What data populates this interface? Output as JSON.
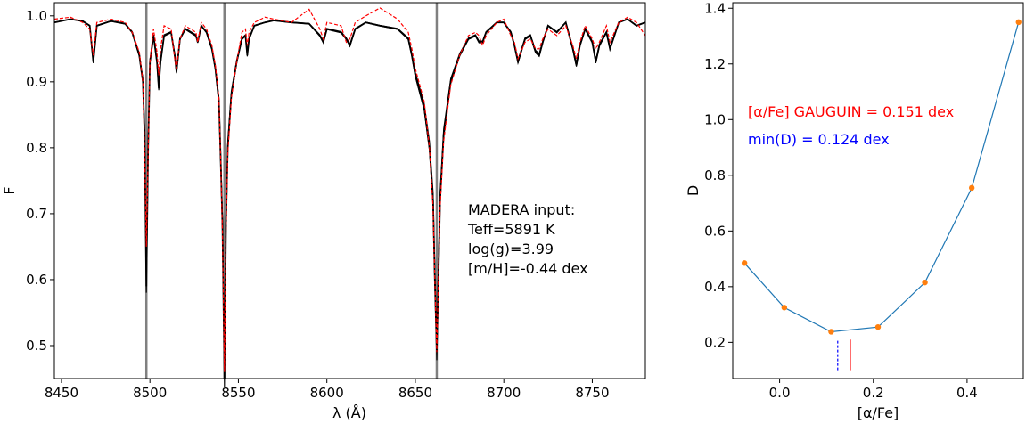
{
  "chart_data": [
    {
      "type": "line",
      "title": "",
      "xlabel": "λ (Å)",
      "ylabel": "F",
      "xlim": [
        8446,
        8780
      ],
      "ylim": [
        0.45,
        1.02
      ],
      "xticks": [
        8450,
        8500,
        8550,
        8600,
        8650,
        8700,
        8750
      ],
      "yticks": [
        0.5,
        0.6,
        0.7,
        0.8,
        0.9,
        1.0
      ],
      "grid": false,
      "vertical_markers": [
        8498.0,
        8542.1,
        8662.1
      ],
      "annotation": [
        "MADERA input:",
        "Teff=5891 K",
        "log(g)=3.99",
        "[m/H]=-0.44 dex"
      ],
      "series": [
        {
          "style": "solid black, multiple overlaid model spectra",
          "color": "#000000",
          "x": [
            8446,
            8455,
            8462,
            8466,
            8468,
            8470,
            8478,
            8486,
            8490,
            8494,
            8496,
            8497,
            8498,
            8499,
            8500,
            8502,
            8504,
            8505,
            8506,
            8508,
            8512,
            8514,
            8515,
            8517,
            8520,
            8526,
            8527,
            8529,
            8532,
            8535,
            8537,
            8539,
            8540,
            8541,
            8542.1,
            8543,
            8544,
            8546,
            8549,
            8552,
            8554,
            8555,
            8556,
            8559,
            8565,
            8570,
            8580,
            8590,
            8596,
            8598,
            8600,
            8608,
            8611,
            8613,
            8616,
            8622,
            8630,
            8640,
            8646,
            8648,
            8650,
            8655,
            8658,
            8660,
            8661,
            8662.1,
            8663,
            8664,
            8666,
            8670,
            8675,
            8680,
            8684,
            8686,
            8688,
            8690,
            8696,
            8700,
            8704,
            8706,
            8708,
            8712,
            8715,
            8718,
            8720,
            8722,
            8725,
            8730,
            8735,
            8739,
            8741,
            8743,
            8746,
            8750,
            8752,
            8754,
            8758,
            8760,
            8765,
            8770,
            8775,
            8780
          ],
          "y": [
            0.99,
            0.995,
            0.992,
            0.985,
            0.93,
            0.985,
            0.992,
            0.988,
            0.975,
            0.94,
            0.9,
            0.82,
            0.59,
            0.8,
            0.93,
            0.97,
            0.93,
            0.89,
            0.93,
            0.97,
            0.975,
            0.94,
            0.915,
            0.965,
            0.98,
            0.97,
            0.96,
            0.985,
            0.975,
            0.95,
            0.92,
            0.87,
            0.78,
            0.68,
            0.45,
            0.68,
            0.8,
            0.88,
            0.93,
            0.965,
            0.97,
            0.94,
            0.965,
            0.985,
            0.99,
            0.993,
            0.99,
            0.988,
            0.97,
            0.96,
            0.98,
            0.975,
            0.965,
            0.955,
            0.98,
            0.99,
            0.985,
            0.98,
            0.965,
            0.94,
            0.91,
            0.86,
            0.8,
            0.72,
            0.6,
            0.49,
            0.6,
            0.72,
            0.82,
            0.9,
            0.94,
            0.965,
            0.97,
            0.96,
            0.96,
            0.975,
            0.99,
            0.99,
            0.975,
            0.955,
            0.93,
            0.965,
            0.97,
            0.945,
            0.94,
            0.96,
            0.985,
            0.975,
            0.99,
            0.95,
            0.925,
            0.955,
            0.98,
            0.96,
            0.93,
            0.955,
            0.975,
            0.95,
            0.99,
            0.995,
            0.985,
            0.99
          ]
        },
        {
          "style": "dashed red, observed spectrum",
          "color": "#ff0000",
          "x": [
            8446,
            8455,
            8462,
            8466,
            8468,
            8470,
            8478,
            8486,
            8490,
            8494,
            8496,
            8497,
            8498,
            8499,
            8500,
            8502,
            8504,
            8505,
            8506,
            8508,
            8512,
            8514,
            8515,
            8517,
            8520,
            8526,
            8527,
            8529,
            8532,
            8535,
            8537,
            8539,
            8540,
            8541,
            8542.1,
            8543,
            8544,
            8546,
            8549,
            8552,
            8554,
            8555,
            8556,
            8559,
            8565,
            8570,
            8580,
            8590,
            8596,
            8598,
            8600,
            8608,
            8611,
            8613,
            8616,
            8622,
            8630,
            8640,
            8646,
            8648,
            8650,
            8655,
            8658,
            8660,
            8661,
            8662.1,
            8663,
            8664,
            8666,
            8670,
            8675,
            8680,
            8684,
            8686,
            8688,
            8690,
            8696,
            8700,
            8704,
            8706,
            8708,
            8712,
            8715,
            8718,
            8720,
            8722,
            8725,
            8730,
            8735,
            8739,
            8741,
            8743,
            8746,
            8750,
            8752,
            8754,
            8758,
            8760,
            8765,
            8770,
            8775,
            8780
          ],
          "y": [
            0.995,
            0.998,
            0.99,
            0.98,
            0.94,
            0.99,
            0.995,
            0.99,
            0.975,
            0.945,
            0.9,
            0.8,
            0.65,
            0.79,
            0.93,
            0.98,
            0.945,
            0.91,
            0.95,
            0.985,
            0.98,
            0.935,
            0.92,
            0.965,
            0.985,
            0.975,
            0.96,
            0.99,
            0.98,
            0.955,
            0.925,
            0.875,
            0.78,
            0.67,
            0.46,
            0.67,
            0.79,
            0.875,
            0.93,
            0.975,
            0.98,
            0.955,
            0.975,
            0.99,
            0.998,
            0.995,
            0.99,
            1.01,
            0.98,
            0.965,
            0.99,
            0.985,
            0.96,
            0.965,
            0.99,
            1.0,
            1.012,
            0.995,
            0.975,
            0.95,
            0.92,
            0.87,
            0.8,
            0.71,
            0.6,
            0.49,
            0.6,
            0.71,
            0.81,
            0.895,
            0.94,
            0.97,
            0.975,
            0.97,
            0.955,
            0.97,
            0.99,
            0.995,
            0.97,
            0.96,
            0.935,
            0.96,
            0.965,
            0.95,
            0.95,
            0.965,
            0.98,
            0.97,
            0.985,
            0.955,
            0.935,
            0.96,
            0.985,
            0.965,
            0.95,
            0.96,
            0.985,
            0.96,
            0.99,
            0.998,
            0.99,
            0.97
          ]
        }
      ]
    },
    {
      "type": "line",
      "title": "",
      "xlabel": "[α/Fe]",
      "ylabel": "D",
      "xlim": [
        -0.1,
        0.52
      ],
      "ylim": [
        0.07,
        1.42
      ],
      "xticks": [
        0.0,
        0.2,
        0.4
      ],
      "yticks": [
        0.2,
        0.4,
        0.6,
        0.8,
        1.0,
        1.2,
        1.4
      ],
      "grid": false,
      "line_color": "#1f77b4",
      "marker_color": "#ff7f0e",
      "series": [
        {
          "x": [
            -0.075,
            0.01,
            0.11,
            0.21,
            0.31,
            0.41,
            0.51
          ],
          "y": [
            0.485,
            0.325,
            0.238,
            0.255,
            0.415,
            0.755,
            1.35
          ]
        }
      ],
      "markers": [
        {
          "x": 0.124,
          "y_range": [
            0.1,
            0.21
          ],
          "style": "dashed",
          "color": "#0000ff"
        },
        {
          "x": 0.151,
          "y_range": [
            0.1,
            0.21
          ],
          "style": "solid",
          "color": "#ff0000"
        }
      ],
      "annotations": [
        {
          "text": "[α/Fe] GAUGUIN = 0.151 dex",
          "color": "#ff0000"
        },
        {
          "text": "min(D) = 0.124 dex",
          "color": "#0000ff"
        }
      ]
    }
  ]
}
